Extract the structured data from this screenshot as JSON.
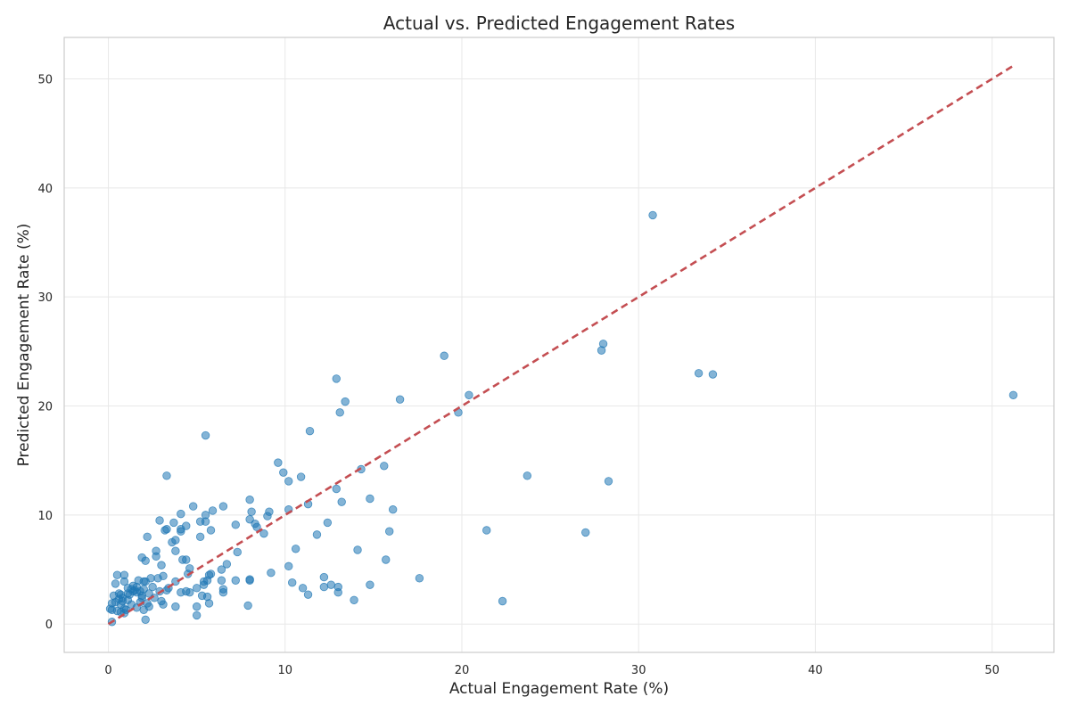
{
  "chart_data": {
    "type": "scatter",
    "title": "Actual vs. Predicted Engagement Rates",
    "xlabel": "Actual Engagement Rate (%)",
    "ylabel": "Predicted Engagement Rate (%)",
    "xlim": [
      -2.5,
      53.5
    ],
    "ylim": [
      -2.6,
      53.8
    ],
    "xticks": [
      0,
      10,
      20,
      30,
      40,
      50
    ],
    "yticks": [
      0,
      10,
      20,
      30,
      40,
      50
    ],
    "grid": true,
    "colors": {
      "points": "#1f77b4",
      "reference_line": "#c44e52"
    },
    "reference_line": {
      "from": [
        0,
        0
      ],
      "to": [
        51.2,
        51.2
      ]
    },
    "points": [
      [
        30.8,
        37.5
      ],
      [
        28.0,
        25.7
      ],
      [
        27.9,
        25.1
      ],
      [
        19.0,
        24.6
      ],
      [
        33.4,
        23.0
      ],
      [
        34.2,
        22.9
      ],
      [
        51.2,
        21.0
      ],
      [
        20.4,
        21.0
      ],
      [
        16.5,
        20.6
      ],
      [
        13.4,
        20.4
      ],
      [
        13.1,
        19.4
      ],
      [
        19.8,
        19.4
      ],
      [
        12.9,
        22.5
      ],
      [
        11.4,
        17.7
      ],
      [
        5.5,
        17.3
      ],
      [
        9.6,
        14.8
      ],
      [
        15.6,
        14.5
      ],
      [
        14.3,
        14.2
      ],
      [
        9.9,
        13.9
      ],
      [
        23.7,
        13.6
      ],
      [
        3.3,
        13.6
      ],
      [
        10.9,
        13.5
      ],
      [
        10.2,
        13.1
      ],
      [
        28.3,
        13.1
      ],
      [
        12.9,
        12.4
      ],
      [
        8.0,
        11.4
      ],
      [
        14.8,
        11.5
      ],
      [
        13.2,
        11.2
      ],
      [
        11.3,
        11.0
      ],
      [
        6.5,
        10.8
      ],
      [
        4.8,
        10.8
      ],
      [
        16.1,
        10.5
      ],
      [
        10.2,
        10.5
      ],
      [
        5.9,
        10.4
      ],
      [
        9.1,
        10.3
      ],
      [
        8.1,
        10.3
      ],
      [
        4.1,
        10.1
      ],
      [
        5.5,
        10.0
      ],
      [
        9.0,
        9.9
      ],
      [
        8.0,
        9.6
      ],
      [
        2.9,
        9.5
      ],
      [
        5.2,
        9.4
      ],
      [
        5.5,
        9.4
      ],
      [
        3.7,
        9.3
      ],
      [
        12.4,
        9.3
      ],
      [
        8.3,
        9.2
      ],
      [
        7.2,
        9.1
      ],
      [
        4.4,
        9.0
      ],
      [
        8.4,
        8.9
      ],
      [
        3.3,
        8.7
      ],
      [
        4.1,
        8.7
      ],
      [
        3.2,
        8.6
      ],
      [
        5.8,
        8.6
      ],
      [
        4.1,
        8.5
      ],
      [
        21.4,
        8.6
      ],
      [
        15.9,
        8.5
      ],
      [
        27.0,
        8.4
      ],
      [
        8.8,
        8.3
      ],
      [
        11.8,
        8.2
      ],
      [
        5.2,
        8.0
      ],
      [
        2.2,
        8.0
      ],
      [
        3.6,
        7.5
      ],
      [
        3.8,
        7.7
      ],
      [
        10.6,
        6.9
      ],
      [
        14.1,
        6.8
      ],
      [
        2.7,
        6.7
      ],
      [
        3.8,
        6.7
      ],
      [
        7.3,
        6.6
      ],
      [
        2.7,
        6.2
      ],
      [
        1.9,
        6.1
      ],
      [
        4.2,
        5.9
      ],
      [
        4.4,
        5.9
      ],
      [
        2.1,
        5.8
      ],
      [
        15.7,
        5.9
      ],
      [
        6.7,
        5.5
      ],
      [
        3.0,
        5.4
      ],
      [
        10.2,
        5.3
      ],
      [
        4.6,
        5.1
      ],
      [
        6.4,
        5.0
      ],
      [
        5.8,
        4.6
      ],
      [
        9.2,
        4.7
      ],
      [
        4.5,
        4.6
      ],
      [
        5.7,
        4.5
      ],
      [
        0.5,
        4.5
      ],
      [
        0.9,
        4.5
      ],
      [
        3.1,
        4.4
      ],
      [
        12.2,
        4.3
      ],
      [
        2.4,
        4.2
      ],
      [
        2.8,
        4.2
      ],
      [
        17.6,
        4.2
      ],
      [
        8.0,
        4.1
      ],
      [
        8.0,
        4.0
      ],
      [
        5.6,
        4.0
      ],
      [
        5.4,
        3.9
      ],
      [
        6.4,
        4.0
      ],
      [
        7.2,
        4.0
      ],
      [
        1.7,
        4.0
      ],
      [
        2.0,
        3.9
      ],
      [
        2.1,
        3.9
      ],
      [
        3.8,
        3.9
      ],
      [
        0.9,
        3.9
      ],
      [
        10.4,
        3.8
      ],
      [
        14.8,
        3.6
      ],
      [
        12.6,
        3.6
      ],
      [
        5.4,
        3.6
      ],
      [
        0.4,
        3.7
      ],
      [
        1.4,
        3.5
      ],
      [
        13.0,
        3.4
      ],
      [
        12.2,
        3.4
      ],
      [
        1.6,
        3.4
      ],
      [
        2.5,
        3.4
      ],
      [
        3.4,
        3.3
      ],
      [
        11.0,
        3.3
      ],
      [
        1.1,
        3.3
      ],
      [
        6.5,
        3.2
      ],
      [
        5.0,
        3.3
      ],
      [
        2.0,
        3.2
      ],
      [
        1.3,
        3.2
      ],
      [
        1.5,
        3.1
      ],
      [
        3.3,
        3.1
      ],
      [
        2.9,
        3.0
      ],
      [
        1.8,
        3.0
      ],
      [
        1.4,
        3.0
      ],
      [
        4.4,
        3.0
      ],
      [
        4.1,
        2.9
      ],
      [
        6.5,
        2.9
      ],
      [
        1.6,
        2.9
      ],
      [
        1.1,
        2.8
      ],
      [
        4.6,
        2.9
      ],
      [
        13.0,
        2.9
      ],
      [
        2.3,
        2.8
      ],
      [
        0.6,
        2.8
      ],
      [
        0.7,
        2.7
      ],
      [
        11.3,
        2.7
      ],
      [
        1.9,
        2.6
      ],
      [
        1.2,
        2.7
      ],
      [
        0.3,
        2.6
      ],
      [
        5.3,
        2.6
      ],
      [
        5.6,
        2.5
      ],
      [
        0.8,
        2.4
      ],
      [
        1.9,
        2.4
      ],
      [
        2.6,
        2.4
      ],
      [
        0.6,
        2.3
      ],
      [
        1.1,
        2.2
      ],
      [
        0.8,
        2.1
      ],
      [
        13.9,
        2.2
      ],
      [
        22.3,
        2.1
      ],
      [
        3.0,
        2.1
      ],
      [
        0.4,
        2.0
      ],
      [
        1.8,
        2.0
      ],
      [
        2.2,
        1.9
      ],
      [
        5.7,
        1.9
      ],
      [
        3.1,
        1.8
      ],
      [
        0.2,
        1.9
      ],
      [
        1.3,
        1.8
      ],
      [
        0.7,
        1.8
      ],
      [
        7.9,
        1.7
      ],
      [
        5.0,
        1.6
      ],
      [
        3.8,
        1.6
      ],
      [
        2.3,
        1.6
      ],
      [
        1.6,
        1.5
      ],
      [
        0.1,
        1.4
      ],
      [
        0.9,
        1.4
      ],
      [
        1.0,
        1.3
      ],
      [
        0.2,
        1.3
      ],
      [
        0.5,
        1.2
      ],
      [
        2.0,
        1.3
      ],
      [
        0.7,
        1.1
      ],
      [
        0.9,
        1.0
      ],
      [
        5.0,
        0.8
      ],
      [
        2.1,
        0.4
      ],
      [
        0.2,
        0.2
      ]
    ]
  }
}
